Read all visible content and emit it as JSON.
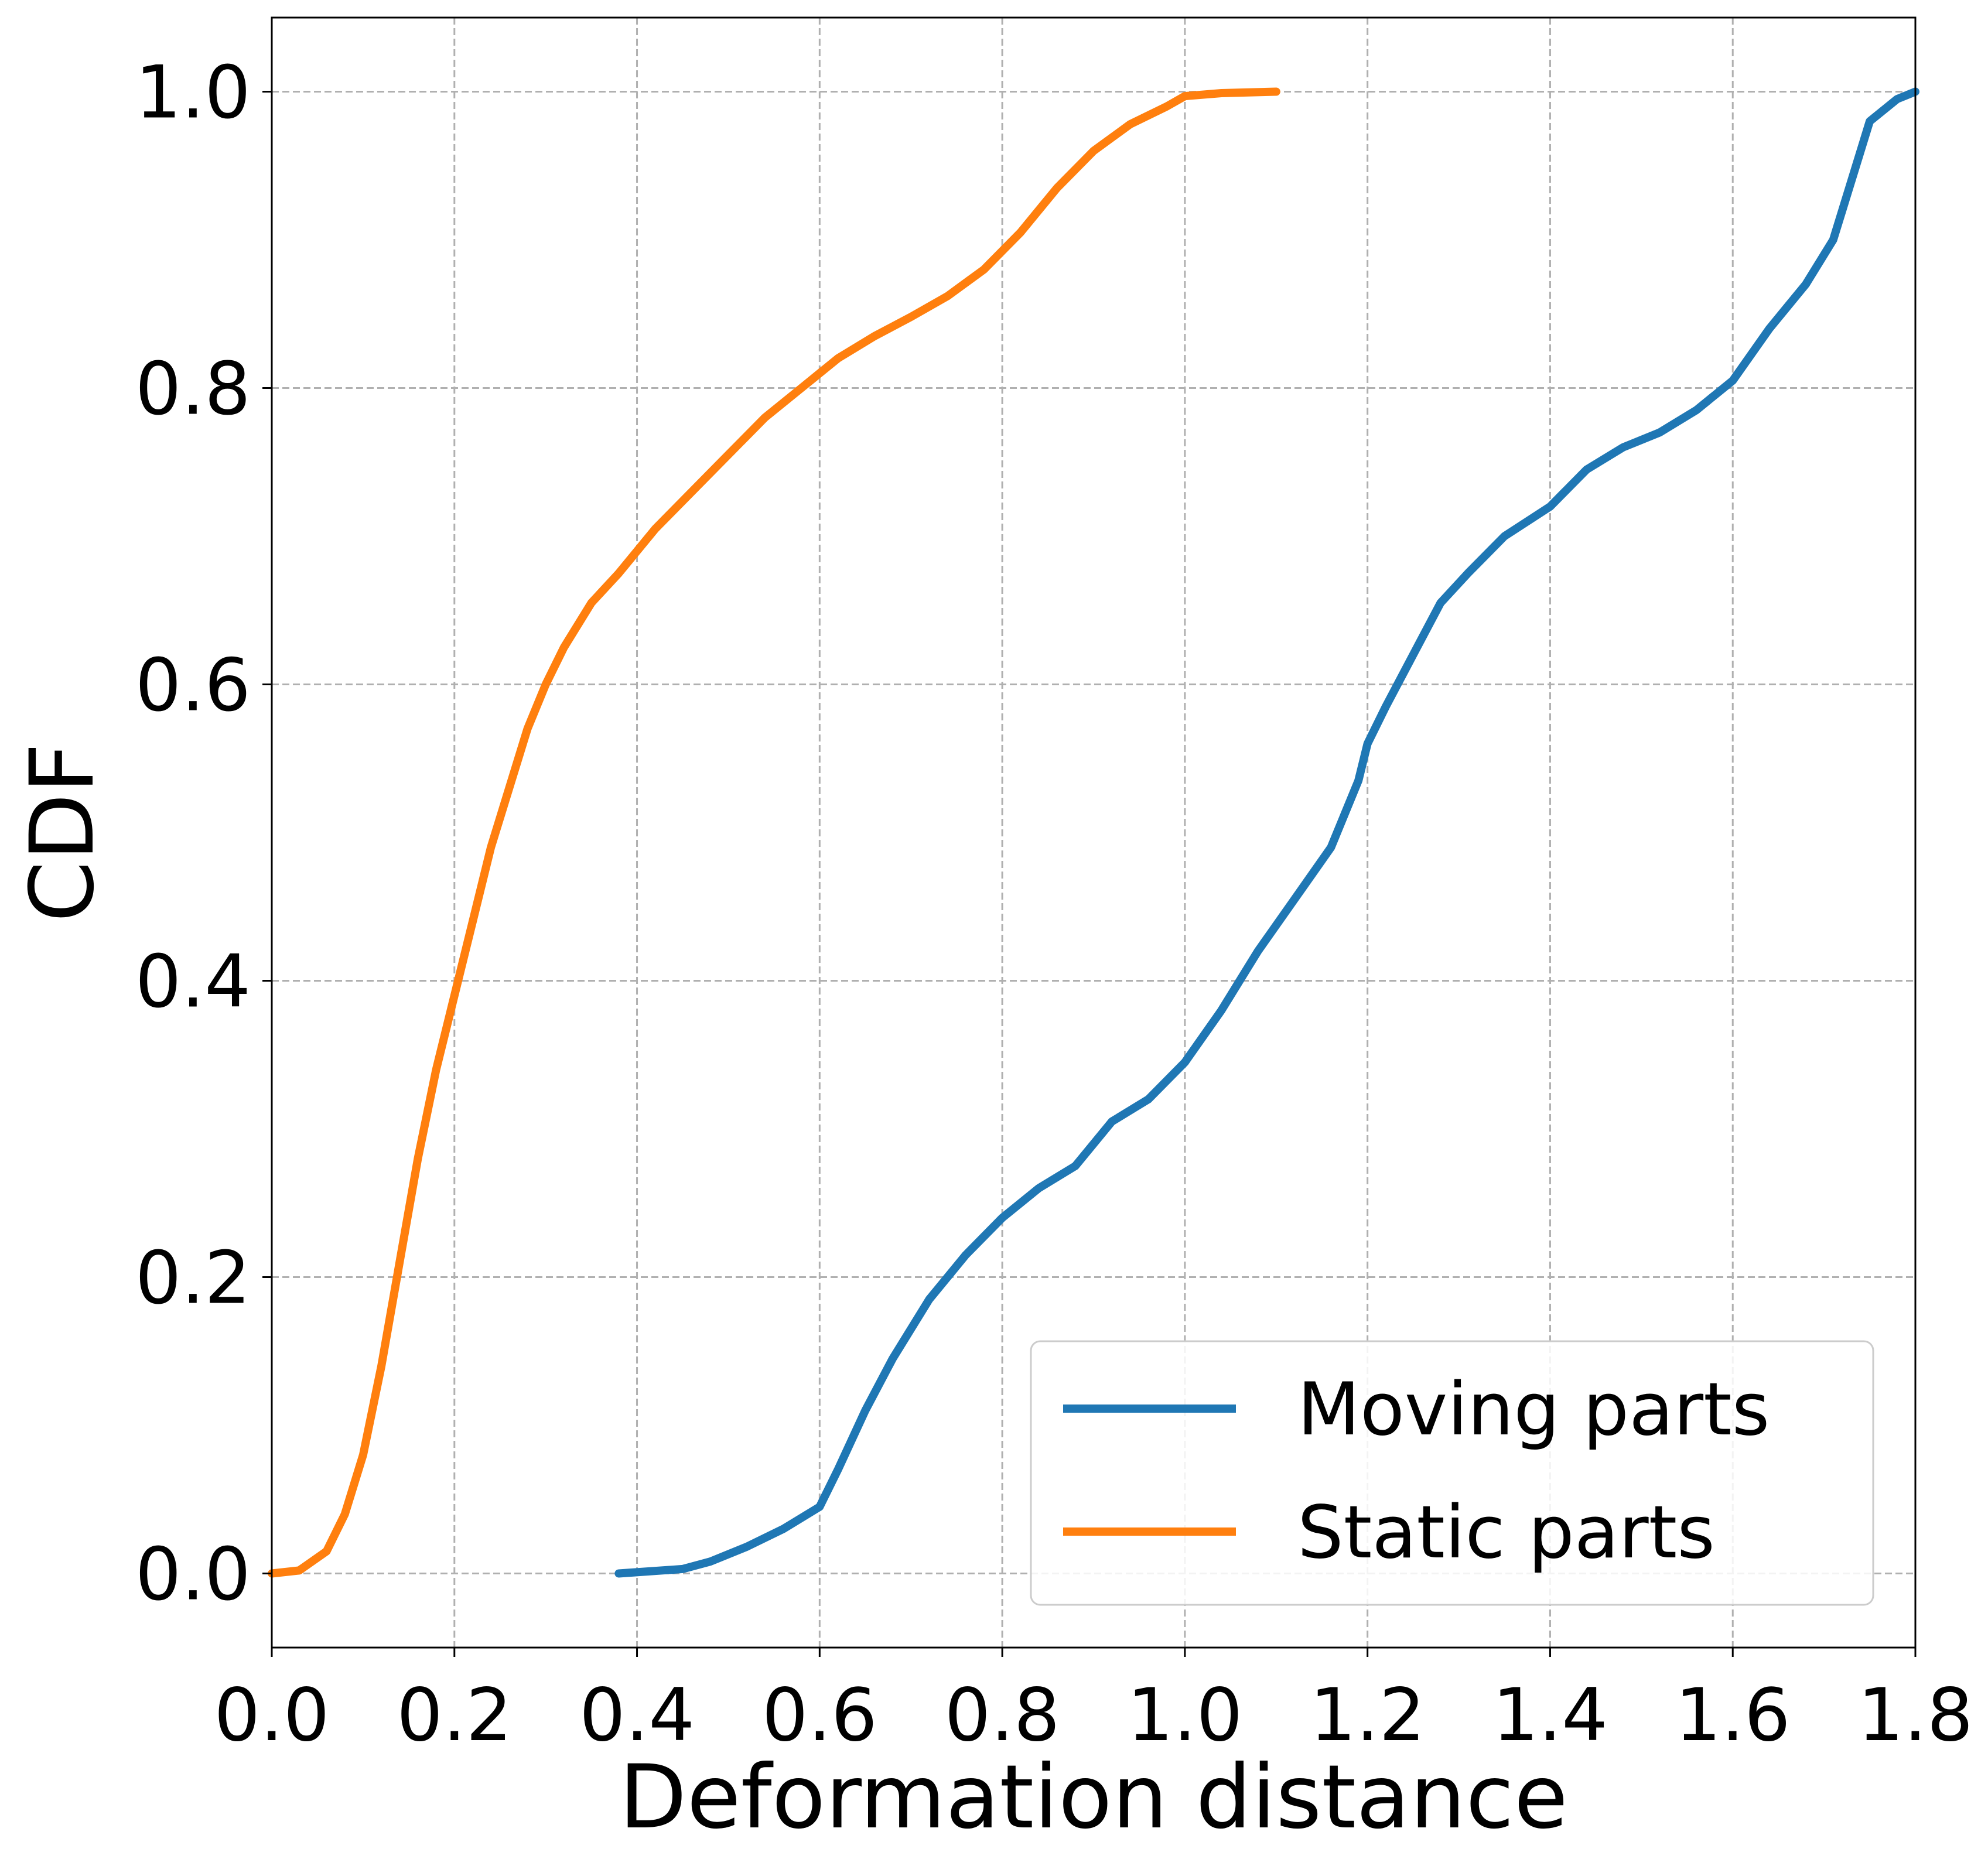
{
  "chart_data": {
    "type": "line",
    "xlabel": "Deformation distance",
    "ylabel": "CDF",
    "xlim": [
      0.0,
      1.8
    ],
    "ylim": [
      -0.05,
      1.05
    ],
    "xticks": [
      "0.0",
      "0.2",
      "0.4",
      "0.6",
      "0.8",
      "1.0",
      "1.2",
      "1.4",
      "1.6",
      "1.8"
    ],
    "yticks": [
      "0.0",
      "0.2",
      "0.4",
      "0.6",
      "0.8",
      "1.0"
    ],
    "grid": true,
    "legend_position": "bottom-right",
    "series": [
      {
        "name": "Moving parts",
        "color": "#1f77b4",
        "points": [
          [
            0.38,
            0.0
          ],
          [
            0.45,
            0.003
          ],
          [
            0.48,
            0.008
          ],
          [
            0.52,
            0.018
          ],
          [
            0.56,
            0.03
          ],
          [
            0.6,
            0.045
          ],
          [
            0.62,
            0.07
          ],
          [
            0.65,
            0.11
          ],
          [
            0.68,
            0.145
          ],
          [
            0.72,
            0.185
          ],
          [
            0.76,
            0.215
          ],
          [
            0.8,
            0.24
          ],
          [
            0.84,
            0.26
          ],
          [
            0.88,
            0.275
          ],
          [
            0.92,
            0.305
          ],
          [
            0.96,
            0.32
          ],
          [
            1.0,
            0.345
          ],
          [
            1.04,
            0.38
          ],
          [
            1.08,
            0.42
          ],
          [
            1.12,
            0.455
          ],
          [
            1.16,
            0.49
          ],
          [
            1.19,
            0.535
          ],
          [
            1.2,
            0.56
          ],
          [
            1.22,
            0.585
          ],
          [
            1.25,
            0.62
          ],
          [
            1.28,
            0.655
          ],
          [
            1.31,
            0.675
          ],
          [
            1.35,
            0.7
          ],
          [
            1.4,
            0.72
          ],
          [
            1.44,
            0.745
          ],
          [
            1.48,
            0.76
          ],
          [
            1.52,
            0.77
          ],
          [
            1.56,
            0.785
          ],
          [
            1.6,
            0.805
          ],
          [
            1.64,
            0.84
          ],
          [
            1.68,
            0.87
          ],
          [
            1.71,
            0.9
          ],
          [
            1.73,
            0.94
          ],
          [
            1.75,
            0.98
          ],
          [
            1.78,
            0.995
          ],
          [
            1.8,
            1.0
          ]
        ]
      },
      {
        "name": "Static parts",
        "color": "#ff7f0e",
        "points": [
          [
            0.0,
            0.0
          ],
          [
            0.03,
            0.002
          ],
          [
            0.06,
            0.015
          ],
          [
            0.08,
            0.04
          ],
          [
            0.1,
            0.08
          ],
          [
            0.12,
            0.14
          ],
          [
            0.14,
            0.21
          ],
          [
            0.16,
            0.28
          ],
          [
            0.18,
            0.34
          ],
          [
            0.2,
            0.39
          ],
          [
            0.22,
            0.44
          ],
          [
            0.24,
            0.49
          ],
          [
            0.26,
            0.53
          ],
          [
            0.28,
            0.57
          ],
          [
            0.3,
            0.6
          ],
          [
            0.32,
            0.625
          ],
          [
            0.35,
            0.655
          ],
          [
            0.38,
            0.675
          ],
          [
            0.42,
            0.705
          ],
          [
            0.46,
            0.73
          ],
          [
            0.5,
            0.755
          ],
          [
            0.54,
            0.78
          ],
          [
            0.58,
            0.8
          ],
          [
            0.62,
            0.82
          ],
          [
            0.66,
            0.835
          ],
          [
            0.7,
            0.848
          ],
          [
            0.74,
            0.862
          ],
          [
            0.78,
            0.88
          ],
          [
            0.82,
            0.905
          ],
          [
            0.86,
            0.935
          ],
          [
            0.9,
            0.96
          ],
          [
            0.94,
            0.978
          ],
          [
            0.98,
            0.99
          ],
          [
            1.0,
            0.997
          ],
          [
            1.04,
            0.999
          ],
          [
            1.1,
            1.0
          ]
        ]
      }
    ]
  }
}
